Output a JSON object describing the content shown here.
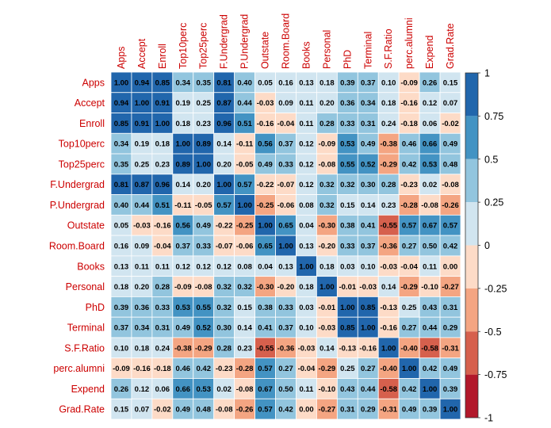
{
  "chart_data": {
    "type": "heatmap",
    "title": "",
    "variables": [
      "Apps",
      "Accept",
      "Enroll",
      "Top10perc",
      "Top25perc",
      "F.Undergrad",
      "P.Undergrad",
      "Outstate",
      "Room.Board",
      "Books",
      "Personal",
      "PhD",
      "Terminal",
      "S.F.Ratio",
      "perc.alumni",
      "Expend",
      "Grad.Rate"
    ],
    "value_labels": [
      [
        "1.00",
        "0.94",
        "0.85",
        "0.34",
        "0.35",
        "0.81",
        "0.40",
        "0.05",
        "0.16",
        "0.13",
        "0.18",
        "0.39",
        "0.37",
        "0.10",
        "-0.09",
        "0.26",
        "0.15"
      ],
      [
        "0.94",
        "1.00",
        "0.91",
        "0.19",
        "0.25",
        "0.87",
        "0.44",
        "-0.03",
        "0.09",
        "0.11",
        "0.20",
        "0.36",
        "0.34",
        "0.18",
        "-0.16",
        "0.12",
        "0.07"
      ],
      [
        "0.85",
        "0.91",
        "1.00",
        "0.18",
        "0.23",
        "0.96",
        "0.51",
        "-0.16",
        "-0.04",
        "0.11",
        "0.28",
        "0.33",
        "0.31",
        "0.24",
        "-0.18",
        "0.06",
        "-0.02"
      ],
      [
        "0.34",
        "0.19",
        "0.18",
        "1.00",
        "0.89",
        "0.14",
        "-0.11",
        "0.56",
        "0.37",
        "0.12",
        "-0.09",
        "0.53",
        "0.49",
        "-0.38",
        "0.46",
        "0.66",
        "0.49"
      ],
      [
        "0.35",
        "0.25",
        "0.23",
        "0.89",
        "1.00",
        "0.20",
        "-0.05",
        "0.49",
        "0.33",
        "0.12",
        "-0.08",
        "0.55",
        "0.52",
        "-0.29",
        "0.42",
        "0.53",
        "0.48"
      ],
      [
        "0.81",
        "0.87",
        "0.96",
        "0.14",
        "0.20",
        "1.00",
        "0.57",
        "-0.22",
        "-0.07",
        "0.12",
        "0.32",
        "0.32",
        "0.30",
        "0.28",
        "-0.23",
        "0.02",
        "-0.08"
      ],
      [
        "0.40",
        "0.44",
        "0.51",
        "-0.11",
        "-0.05",
        "0.57",
        "1.00",
        "-0.25",
        "-0.06",
        "0.08",
        "0.32",
        "0.15",
        "0.14",
        "0.23",
        "-0.28",
        "-0.08",
        "-0.26"
      ],
      [
        "0.05",
        "-0.03",
        "-0.16",
        "0.56",
        "0.49",
        "-0.22",
        "-0.25",
        "1.00",
        "0.65",
        "0.04",
        "-0.30",
        "0.38",
        "0.41",
        "-0.55",
        "0.57",
        "0.67",
        "0.57"
      ],
      [
        "0.16",
        "0.09",
        "-0.04",
        "0.37",
        "0.33",
        "-0.07",
        "-0.06",
        "0.65",
        "1.00",
        "0.13",
        "-0.20",
        "0.33",
        "0.37",
        "-0.36",
        "0.27",
        "0.50",
        "0.42"
      ],
      [
        "0.13",
        "0.11",
        "0.11",
        "0.12",
        "0.12",
        "0.12",
        "0.08",
        "0.04",
        "0.13",
        "1.00",
        "0.18",
        "0.03",
        "0.10",
        "-0.03",
        "-0.04",
        "0.11",
        "0.00"
      ],
      [
        "0.18",
        "0.20",
        "0.28",
        "-0.09",
        "-0.08",
        "0.32",
        "0.32",
        "-0.30",
        "-0.20",
        "0.18",
        "1.00",
        "-0.01",
        "-0.03",
        "0.14",
        "-0.29",
        "-0.10",
        "-0.27"
      ],
      [
        "0.39",
        "0.36",
        "0.33",
        "0.53",
        "0.55",
        "0.32",
        "0.15",
        "0.38",
        "0.33",
        "0.03",
        "-0.01",
        "1.00",
        "0.85",
        "-0.13",
        "0.25",
        "0.43",
        "0.31"
      ],
      [
        "0.37",
        "0.34",
        "0.31",
        "0.49",
        "0.52",
        "0.30",
        "0.14",
        "0.41",
        "0.37",
        "0.10",
        "-0.03",
        "0.85",
        "1.00",
        "-0.16",
        "0.27",
        "0.44",
        "0.29"
      ],
      [
        "0.10",
        "0.18",
        "0.24",
        "-0.38",
        "-0.29",
        "0.28",
        "0.23",
        "-0.55",
        "-0.36",
        "-0.03",
        "0.14",
        "-0.13",
        "-0.16",
        "1.00",
        "-0.40",
        "-0.58",
        "-0.31"
      ],
      [
        "-0.09",
        "-0.16",
        "-0.18",
        "0.46",
        "0.42",
        "-0.23",
        "-0.28",
        "0.57",
        "0.27",
        "-0.04",
        "-0.29",
        "0.25",
        "0.27",
        "-0.40",
        "1.00",
        "0.42",
        "0.49"
      ],
      [
        "0.26",
        "0.12",
        "0.06",
        "0.66",
        "0.53",
        "0.02",
        "-0.08",
        "0.67",
        "0.50",
        "0.11",
        "-0.10",
        "0.43",
        "0.44",
        "-0.58",
        "0.42",
        "1.00",
        "0.39"
      ],
      [
        "0.15",
        "0.07",
        "-0.02",
        "0.49",
        "0.48",
        "-0.08",
        "-0.26",
        "0.57",
        "0.42",
        "0.00",
        "-0.27",
        "0.31",
        "0.29",
        "-0.31",
        "0.49",
        "0.39",
        "1.00"
      ]
    ],
    "color_range": [
      -1,
      1
    ],
    "legend": {
      "placement": "right",
      "tick_labels": [
        "1",
        "0.75",
        "0.5",
        "0.25",
        "0",
        "-0.25",
        "-0.5",
        "-0.75",
        "-1"
      ],
      "bins_top_to_bottom": [
        "#2166ac",
        "#4393c3",
        "#92c5de",
        "#d1e5f0",
        "#fddbc7",
        "#f4a582",
        "#d6604d",
        "#b2182b"
      ]
    },
    "label_color": "#cc0000",
    "grid": true
  }
}
